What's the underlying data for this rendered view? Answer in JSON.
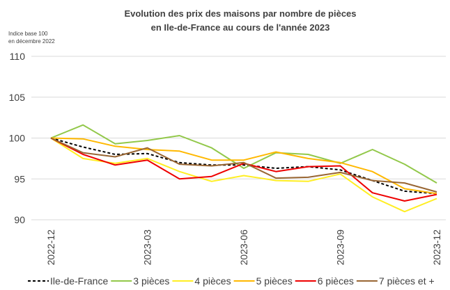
{
  "chart_data": {
    "type": "line",
    "title": [
      "Evolution des prix des maisons par nombre de pièces",
      "en Ile-de-France au cours de l'année 2023"
    ],
    "y_label": [
      "Indice base 100",
      "en décembre 2022"
    ],
    "categories": [
      "2022-12",
      null,
      null,
      "2023-03",
      null,
      null,
      "2023-06",
      null,
      null,
      "2023-09",
      null,
      null,
      "2023-12"
    ],
    "ylim": [
      90,
      110
    ],
    "yticks": [
      90,
      95,
      100,
      105,
      110
    ],
    "grid": true,
    "legend": "bottom",
    "series": [
      {
        "name": "Ile-de-France",
        "color": "#000000",
        "dashed": true,
        "values": [
          100,
          98.9,
          98.0,
          98.1,
          97.0,
          96.7,
          96.7,
          96.3,
          96.5,
          96.1,
          94.8,
          93.5,
          93.2
        ]
      },
      {
        "name": "3 pièces",
        "color": "#92c84a",
        "values": [
          100,
          101.6,
          99.3,
          99.7,
          100.3,
          98.8,
          96.3,
          98.2,
          98.0,
          96.9,
          98.6,
          96.8,
          94.5
        ]
      },
      {
        "name": "4 pièces",
        "color": "#ffee22",
        "values": [
          100,
          97.5,
          96.9,
          97.5,
          95.9,
          94.7,
          95.4,
          94.8,
          94.7,
          95.6,
          92.8,
          91.0,
          92.6
        ]
      },
      {
        "name": "5 pièces",
        "color": "#ffb800",
        "values": [
          100,
          99.9,
          99.0,
          98.6,
          98.4,
          97.3,
          97.3,
          98.3,
          97.5,
          97.0,
          95.9,
          93.8,
          93.2
        ]
      },
      {
        "name": "6 pièces",
        "color": "#ee0000",
        "values": [
          100,
          98.0,
          96.7,
          97.3,
          95.0,
          95.3,
          96.9,
          95.9,
          96.5,
          96.6,
          93.3,
          92.3,
          93.1
        ]
      },
      {
        "name": "7 pièces et +",
        "color": "#996633",
        "values": [
          100,
          98.2,
          97.7,
          98.8,
          96.8,
          96.6,
          97.0,
          95.1,
          95.2,
          95.8,
          94.8,
          94.5,
          93.4
        ]
      }
    ]
  }
}
